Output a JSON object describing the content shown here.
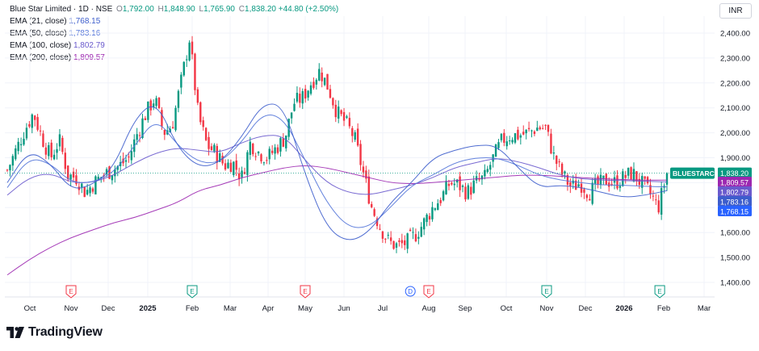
{
  "header": {
    "symbol": "Blue Star Limited · 1D · NSE",
    "ohlc": [
      {
        "key": "O",
        "value": "1,792.00"
      },
      {
        "key": "H",
        "value": "1,848.90"
      },
      {
        "key": "L",
        "value": "1,765.90"
      },
      {
        "key": "C",
        "value": "1,838.20"
      }
    ],
    "change": "+44.80 (+2.50%)",
    "emas": [
      {
        "name": "EMA (21, close)",
        "value": "1,768.15",
        "color": "#3d5dcc"
      },
      {
        "name": "EMA (50, close)",
        "value": "1,783.16",
        "color": "#5475d9"
      },
      {
        "name": "EMA (100, close)",
        "value": "1,802.79",
        "color": "#6a5acd"
      },
      {
        "name": "EMA (200, close)",
        "value": "1,809.57",
        "color": "#9c27b0"
      }
    ]
  },
  "currency_button": "INR",
  "brand": {
    "text": "TradingView"
  },
  "colors": {
    "up": "#089981",
    "down": "#f23645",
    "grid": "#f0f3fa",
    "axis_text": "#131722",
    "tag_green": "#089981"
  },
  "chart_data": {
    "type": "candlestick",
    "price_axis": {
      "min": 1400,
      "max": 2400,
      "ticks": [
        "2,400.00",
        "2,300.00",
        "2,200.00",
        "2,100.00",
        "2,000.00",
        "1,900.00",
        "1,800.00",
        "1,700.00",
        "1,600.00",
        "1,500.00",
        "1,400.00"
      ]
    },
    "time_axis": [
      "Oct",
      "Nov",
      "Dec",
      "2025",
      "Feb",
      "Mar",
      "Apr",
      "May",
      "Jun",
      "Jul",
      "Aug",
      "Sep",
      "Oct",
      "Nov",
      "Dec",
      "2026",
      "Feb",
      "Mar"
    ],
    "price_ticks_values": [
      2400,
      2300,
      2200,
      2100,
      2000,
      1900,
      1800,
      1700,
      1600,
      1500,
      1400
    ],
    "close_path": [
      1850,
      1930,
      2010,
      2080,
      1980,
      1900,
      1970,
      1830,
      1820,
      1760,
      1800,
      1830,
      1850,
      1870,
      1900,
      2000,
      2080,
      2140,
      2000,
      2030,
      2200,
      2380,
      2070,
      1950,
      1920,
      1870,
      1880,
      1820,
      1960,
      1920,
      1900,
      1940,
      1980,
      2120,
      2140,
      2200,
      2250,
      2180,
      2080,
      2040,
      1980,
      1840,
      1700,
      1620,
      1560,
      1545,
      1560,
      1590,
      1640,
      1700,
      1740,
      1800,
      1790,
      1760,
      1800,
      1820,
      1900,
      1970,
      1990,
      1990,
      2000,
      2020,
      2020,
      1900,
      1830,
      1780,
      1800,
      1760,
      1790,
      1810,
      1800,
      1820,
      1840,
      1800,
      1760,
      1700,
      1838
    ],
    "ema_series": [
      {
        "name": "EMA (200, close)",
        "values": [
          1430,
          1490,
          1540,
          1580,
          1610,
          1640,
          1660,
          1690,
          1720,
          1770,
          1790,
          1820,
          1840,
          1860,
          1870,
          1860,
          1840,
          1820,
          1800,
          1795,
          1800,
          1808,
          1815,
          1822,
          1830,
          1830,
          1826,
          1820,
          1816,
          1812,
          1810,
          1810
        ]
      },
      {
        "name": "EMA (100, close)",
        "values": [
          1750,
          1820,
          1840,
          1800,
          1800,
          1830,
          1880,
          1920,
          1940,
          1930,
          1920,
          1960,
          1990,
          1990,
          1890,
          1800,
          1760,
          1750,
          1770,
          1790,
          1820,
          1860,
          1880,
          1900,
          1885,
          1860,
          1830,
          1815,
          1810,
          1808,
          1806,
          1803
        ]
      },
      {
        "name": "EMA (50, close)",
        "values": [
          1780,
          1900,
          1880,
          1800,
          1800,
          1840,
          1950,
          2060,
          1950,
          1880,
          1880,
          1960,
          2080,
          2060,
          1890,
          1720,
          1620,
          1620,
          1700,
          1790,
          1830,
          1880,
          1900,
          1900,
          1870,
          1830,
          1810,
          1800,
          1790,
          1790,
          1785,
          1783
        ]
      },
      {
        "name": "EMA (21, close)",
        "values": [
          1800,
          1930,
          1880,
          1770,
          1790,
          1860,
          2060,
          2130,
          1940,
          1860,
          1880,
          1980,
          2120,
          2110,
          1830,
          1620,
          1560,
          1600,
          1720,
          1800,
          1900,
          1930,
          1950,
          1950,
          1860,
          1780,
          1790,
          1780,
          1760,
          1740,
          1750,
          1768
        ]
      }
    ],
    "price_tags": [
      {
        "label": "BLUESTARCO",
        "value": "1,838.20",
        "price": 1838.2,
        "color": "#089981"
      },
      {
        "value": "1,809.57",
        "price": 1809.57,
        "color": "#9c27b0"
      },
      {
        "value": "1,802.79",
        "price": 1802.79,
        "color": "#6a5acd"
      },
      {
        "value": "1,783.16",
        "price": 1783.16,
        "color": "#3d5dcc"
      },
      {
        "value": "1,768.15",
        "price": 1768.15,
        "color": "#2962ff"
      }
    ],
    "event_markers": [
      {
        "type": "E",
        "color": "#f23645",
        "month_index": 1
      },
      {
        "type": "E",
        "color": "#089981",
        "month_index": 4
      },
      {
        "type": "E",
        "color": "#f23645",
        "month_index": 7
      },
      {
        "type": "D",
        "color": "#2962ff",
        "month_index": 9.6
      },
      {
        "type": "E",
        "color": "#f23645",
        "month_index": 10
      },
      {
        "type": "E",
        "color": "#089981",
        "month_index": 13
      },
      {
        "type": "E",
        "color": "#089981",
        "month_index": 15.9
      }
    ]
  }
}
